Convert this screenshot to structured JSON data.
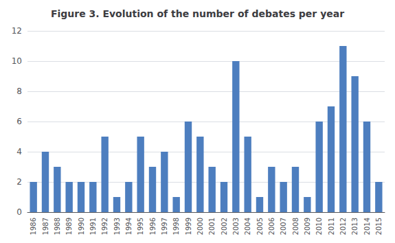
{
  "chart_data": {
    "type": "bar",
    "title": "Figure 3. Evolution of the number of debates per year",
    "categories": [
      "1986",
      "1987",
      "1988",
      "1989",
      "1990",
      "1991",
      "1992",
      "1993",
      "1994",
      "1995",
      "1996",
      "1997",
      "1998",
      "1999",
      "2000",
      "2001",
      "2002",
      "2003",
      "2004",
      "2005",
      "2006",
      "2007",
      "2008",
      "2009",
      "2010",
      "2011",
      "2012",
      "2013",
      "2014",
      "2015"
    ],
    "values": [
      2,
      4,
      3,
      2,
      2,
      2,
      5,
      1,
      2,
      5,
      3,
      4,
      1,
      6,
      5,
      3,
      2,
      10,
      5,
      1,
      3,
      2,
      3,
      1,
      6,
      7,
      11,
      9,
      6,
      2
    ],
    "color": "#4d7ebf",
    "ylim": [
      0,
      12
    ],
    "yticks": [
      0,
      2,
      4,
      6,
      8,
      10,
      12
    ],
    "grid": true
  }
}
